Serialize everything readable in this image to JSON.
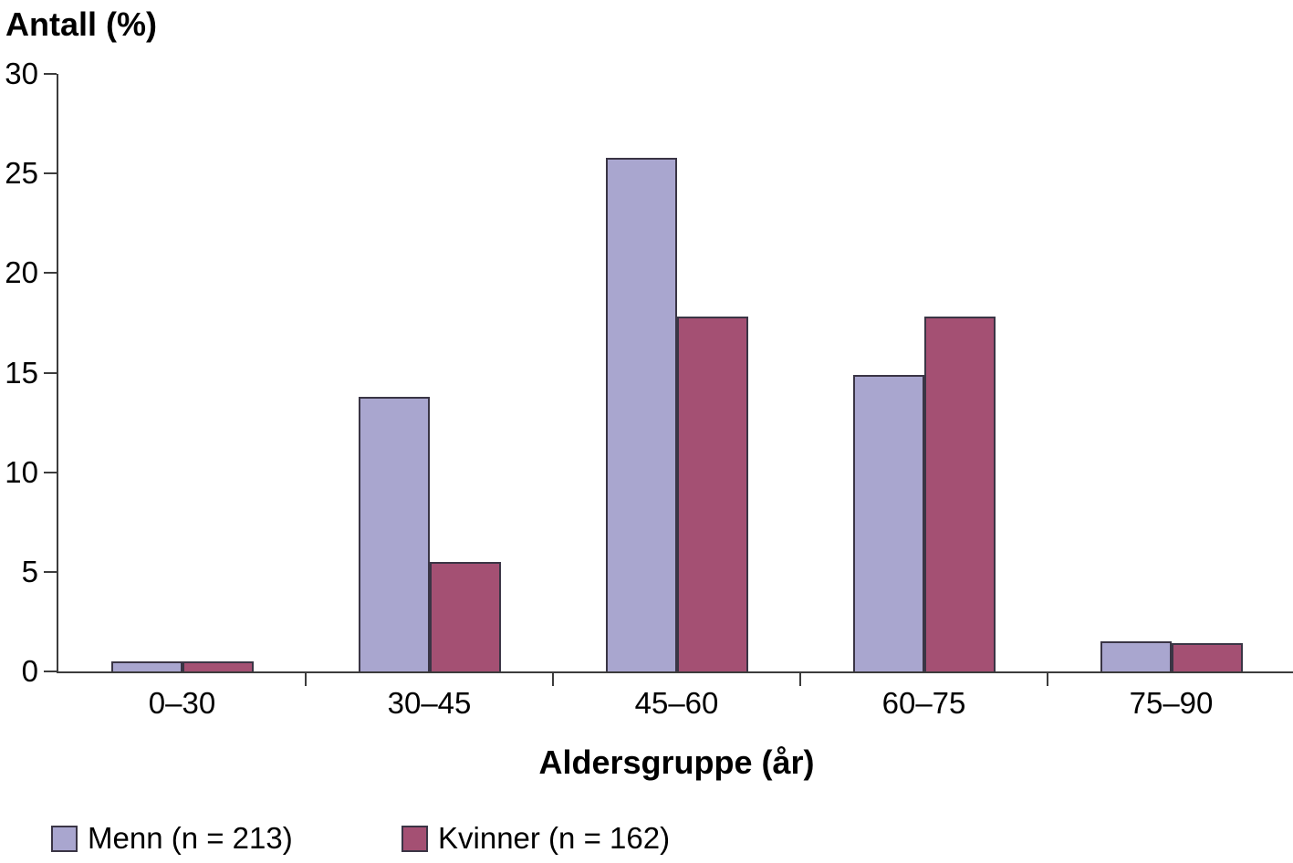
{
  "chart_data": {
    "type": "bar",
    "ylabel": "Antall (%)",
    "xlabel": "Aldersgruppe (år)",
    "categories": [
      "0–30",
      "30–45",
      "45–60",
      "60–75",
      "75–90"
    ],
    "series": [
      {
        "name": "Menn (n = 213)",
        "color": "#A9A6CF",
        "values": [
          0.5,
          13.8,
          25.8,
          14.9,
          1.5
        ]
      },
      {
        "name": "Kvinner (n = 162)",
        "color": "#A45073",
        "values": [
          0.5,
          5.5,
          17.8,
          17.8,
          1.4
        ]
      }
    ],
    "ylim": [
      0,
      30
    ],
    "yticks": [
      0,
      5,
      10,
      15,
      20,
      25,
      30
    ],
    "grid": false,
    "legend_position": "bottom",
    "bar_border_color": "#3a3545",
    "axis_color": "#3c3c3c",
    "background_color": "#ffffff"
  }
}
